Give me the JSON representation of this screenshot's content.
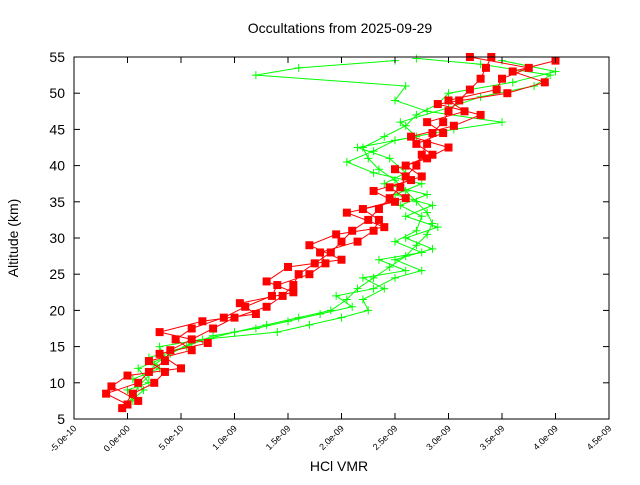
{
  "chart_data": {
    "type": "line",
    "title": "Occultations from 2025-09-29",
    "xlabel": "HCl VMR",
    "ylabel": "Altitude (km)",
    "xlim": [
      -5e-10,
      4.5e-09
    ],
    "ylim": [
      5,
      55
    ],
    "x_ticks": [
      "-5.0e-10",
      "0.0e+00",
      "5.0e-10",
      "1.0e-09",
      "1.5e-09",
      "2.0e-09",
      "2.5e-09",
      "3.0e-09",
      "3.5e-09",
      "4.0e-09",
      "4.5e-09"
    ],
    "x_tick_values": [
      -5e-10,
      0,
      5e-10,
      1e-09,
      1.5e-09,
      2e-09,
      2.5e-09,
      3e-09,
      3.5e-09,
      4e-09,
      4.5e-09
    ],
    "y_ticks": [
      "5",
      "10",
      "15",
      "20",
      "25",
      "30",
      "35",
      "40",
      "45",
      "50",
      "55"
    ],
    "y_tick_values": [
      5,
      10,
      15,
      20,
      25,
      30,
      35,
      40,
      45,
      50,
      55
    ],
    "grid": false,
    "legend": "none",
    "series": [
      {
        "color": "#ff0000",
        "marker": "filled-square",
        "profiles": [
          [
            [
              0.0,
              7
            ],
            [
              -2e-10,
              8.5
            ],
            [
              1e-10,
              10
            ],
            [
              2e-10,
              11.5
            ],
            [
              3.5e-10,
              13
            ],
            [
              4e-10,
              14.5
            ],
            [
              6e-10,
              16
            ],
            [
              8e-10,
              17.5
            ],
            [
              1e-09,
              19
            ],
            [
              1.3e-09,
              20.5
            ],
            [
              1.45e-09,
              22
            ],
            [
              1.55e-09,
              23.5
            ],
            [
              1.6e-09,
              25
            ],
            [
              1.75e-09,
              26.5
            ],
            [
              1.9e-09,
              28
            ],
            [
              2e-09,
              29.5
            ],
            [
              2.1e-09,
              31
            ],
            [
              2.25e-09,
              32.5
            ],
            [
              2.35e-09,
              34
            ],
            [
              2.45e-09,
              35.5
            ],
            [
              2.55e-09,
              37
            ],
            [
              2.6e-09,
              38.5
            ],
            [
              2.7e-09,
              40
            ],
            [
              2.75e-09,
              41.5
            ],
            [
              2.8e-09,
              43
            ],
            [
              2.85e-09,
              44.5
            ],
            [
              2.95e-09,
              46
            ],
            [
              3e-09,
              47.5
            ],
            [
              3.1e-09,
              49
            ],
            [
              3.2e-09,
              50.5
            ],
            [
              3.3e-09,
              52
            ],
            [
              3.35e-09,
              53.5
            ],
            [
              3.4e-09,
              55
            ]
          ],
          [
            [
              -5e-11,
              6.5
            ],
            [
              5e-11,
              8.5
            ],
            [
              2.5e-10,
              10
            ],
            [
              3.5e-10,
              11.5
            ],
            [
              2e-10,
              13
            ],
            [
              6e-10,
              14.5
            ],
            [
              4.5e-10,
              16
            ],
            [
              6e-10,
              17.5
            ],
            [
              9e-10,
              19
            ],
            [
              1.1e-09,
              20.5
            ],
            [
              1.35e-09,
              22
            ],
            [
              1.4e-09,
              23.5
            ],
            [
              1.7e-09,
              25
            ],
            [
              1.85e-09,
              26.5
            ],
            [
              1.8e-09,
              28
            ],
            [
              2.15e-09,
              29.5
            ],
            [
              2.3e-09,
              31
            ],
            [
              2.35e-09,
              32.5
            ],
            [
              2.2e-09,
              34
            ],
            [
              2.6e-09,
              35.5
            ],
            [
              2.45e-09,
              37
            ],
            [
              2.75e-09,
              38.5
            ],
            [
              2.6e-09,
              40
            ],
            [
              2.85e-09,
              41.5
            ],
            [
              2.7e-09,
              43
            ],
            [
              2.95e-09,
              44.5
            ],
            [
              2.8e-09,
              46
            ],
            [
              3.15e-09,
              47.5
            ],
            [
              3e-09,
              49
            ],
            [
              3.45e-09,
              50.5
            ],
            [
              3.5e-09,
              52
            ],
            [
              3.75e-09,
              53.5
            ],
            [
              3.2e-09,
              55
            ]
          ],
          [
            [
              1e-10,
              7.5
            ],
            [
              -1.5e-10,
              9.5
            ],
            [
              0.0,
              11
            ],
            [
              5e-10,
              12
            ],
            [
              3e-10,
              14
            ],
            [
              7.5e-10,
              15.5
            ],
            [
              3e-10,
              17
            ],
            [
              7e-10,
              18.5
            ],
            [
              1.2e-09,
              19.5
            ],
            [
              1.05e-09,
              21
            ],
            [
              1.55e-09,
              22.5
            ],
            [
              1.3e-09,
              24
            ],
            [
              1.5e-09,
              26
            ],
            [
              2e-09,
              27
            ],
            [
              1.7e-09,
              29
            ],
            [
              1.95e-09,
              30.5
            ],
            [
              2.4e-09,
              31.5
            ],
            [
              2.05e-09,
              33.5
            ],
            [
              2.5e-09,
              35
            ],
            [
              2.3e-09,
              36.5
            ],
            [
              2.65e-09,
              38
            ],
            [
              2.5e-09,
              39.5
            ],
            [
              2.8e-09,
              41
            ],
            [
              3e-09,
              42.5
            ],
            [
              2.65e-09,
              44
            ],
            [
              3.05e-09,
              45.5
            ],
            [
              3.3e-09,
              47
            ],
            [
              2.9e-09,
              48.5
            ],
            [
              3.55e-09,
              50
            ],
            [
              3.9e-09,
              51.5
            ],
            [
              3.6e-09,
              53
            ],
            [
              4e-09,
              54.5
            ]
          ]
        ]
      },
      {
        "color": "#00ff00",
        "marker": "plus",
        "profiles": [
          [
            [
              -5e-11,
              6.5
            ],
            [
              5e-11,
              8
            ],
            [
              1e-10,
              9.5
            ],
            [
              2e-10,
              11
            ],
            [
              2.5e-10,
              12.5
            ],
            [
              4e-10,
              14
            ],
            [
              6e-10,
              15.5
            ],
            [
              1e-09,
              17
            ],
            [
              1.3e-09,
              18
            ],
            [
              1.6e-09,
              19
            ],
            [
              1.9e-09,
              20
            ],
            [
              2.05e-09,
              21.5
            ],
            [
              2.15e-09,
              23
            ],
            [
              2.3e-09,
              24.5
            ],
            [
              2.45e-09,
              26
            ],
            [
              2.6e-09,
              27.5
            ],
            [
              2.7e-09,
              29
            ],
            [
              2.8e-09,
              30.5
            ],
            [
              2.85e-09,
              32
            ],
            [
              2.8e-09,
              33.5
            ],
            [
              2.7e-09,
              35
            ],
            [
              2.6e-09,
              36.5
            ],
            [
              2.5e-09,
              38
            ],
            [
              2.35e-09,
              39.5
            ],
            [
              2.25e-09,
              41
            ],
            [
              2.2e-09,
              42.5
            ],
            [
              2.4e-09,
              44
            ],
            [
              2.6e-09,
              45.5
            ],
            [
              2.7e-09,
              47
            ],
            [
              2.9e-09,
              48.5
            ],
            [
              3e-09,
              50
            ],
            [
              3.6e-09,
              51.5
            ],
            [
              4e-09,
              53
            ],
            [
              3.5e-09,
              54.5
            ]
          ],
          [
            [
              0.0,
              7
            ],
            [
              1.5e-10,
              9
            ],
            [
              5e-11,
              10.5
            ],
            [
              3e-10,
              12
            ],
            [
              2e-10,
              13.5
            ],
            [
              5.5e-10,
              15
            ],
            [
              8e-10,
              16.5
            ],
            [
              1.2e-09,
              17.5
            ],
            [
              1.5e-09,
              18.5
            ],
            [
              1.8e-09,
              19.5
            ],
            [
              2.1e-09,
              20.5
            ],
            [
              1.95e-09,
              22
            ],
            [
              2.3e-09,
              23
            ],
            [
              2.5e-09,
              24.5
            ],
            [
              2.75e-09,
              25.5
            ],
            [
              2.5e-09,
              27
            ],
            [
              2.85e-09,
              28.5
            ],
            [
              2.6e-09,
              30
            ],
            [
              2.9e-09,
              31.5
            ],
            [
              2.6e-09,
              33
            ],
            [
              2.85e-09,
              34.5
            ],
            [
              2.5e-09,
              36
            ],
            [
              2.75e-09,
              37.5
            ],
            [
              2.3e-09,
              39
            ],
            [
              2.05e-09,
              40.5
            ],
            [
              2.3e-09,
              42
            ],
            [
              2.5e-09,
              43.5
            ],
            [
              3.05e-09,
              45
            ],
            [
              3.5e-09,
              46
            ],
            [
              2.8e-09,
              47.5
            ],
            [
              2.5e-09,
              49
            ],
            [
              2.6e-09,
              51
            ],
            [
              1.2e-09,
              52.5
            ],
            [
              1.6e-09,
              53.5
            ],
            [
              2.5e-09,
              54.5
            ]
          ],
          [
            [
              5e-11,
              7.5
            ],
            [
              0.0,
              9
            ],
            [
              2e-10,
              10
            ],
            [
              1e-10,
              12
            ],
            [
              3.5e-10,
              13.5
            ],
            [
              3e-10,
              15
            ],
            [
              7e-10,
              16
            ],
            [
              1.4e-09,
              17
            ],
            [
              1.7e-09,
              18
            ],
            [
              2e-09,
              19
            ],
            [
              2.25e-09,
              20
            ],
            [
              2.2e-09,
              21.5
            ],
            [
              2.4e-09,
              23
            ],
            [
              2.2e-09,
              24.5
            ],
            [
              2.6e-09,
              25.5
            ],
            [
              2.35e-09,
              27
            ],
            [
              2.75e-09,
              28
            ],
            [
              2.5e-09,
              29.5
            ],
            [
              2.7e-09,
              31
            ],
            [
              2.75e-09,
              33
            ],
            [
              2.55e-09,
              34.5
            ],
            [
              2.8e-09,
              36
            ],
            [
              2.4e-09,
              37.5
            ],
            [
              2.6e-09,
              39
            ],
            [
              2.45e-09,
              41
            ],
            [
              2.15e-09,
              42.5
            ],
            [
              2.7e-09,
              44
            ],
            [
              2.55e-09,
              46
            ],
            [
              3e-09,
              48
            ],
            [
              3.3e-09,
              49.5
            ],
            [
              3.8e-09,
              51
            ],
            [
              3.95e-09,
              52.5
            ],
            [
              3.3e-09,
              54
            ],
            [
              2.7e-09,
              54.8
            ]
          ]
        ]
      }
    ]
  }
}
